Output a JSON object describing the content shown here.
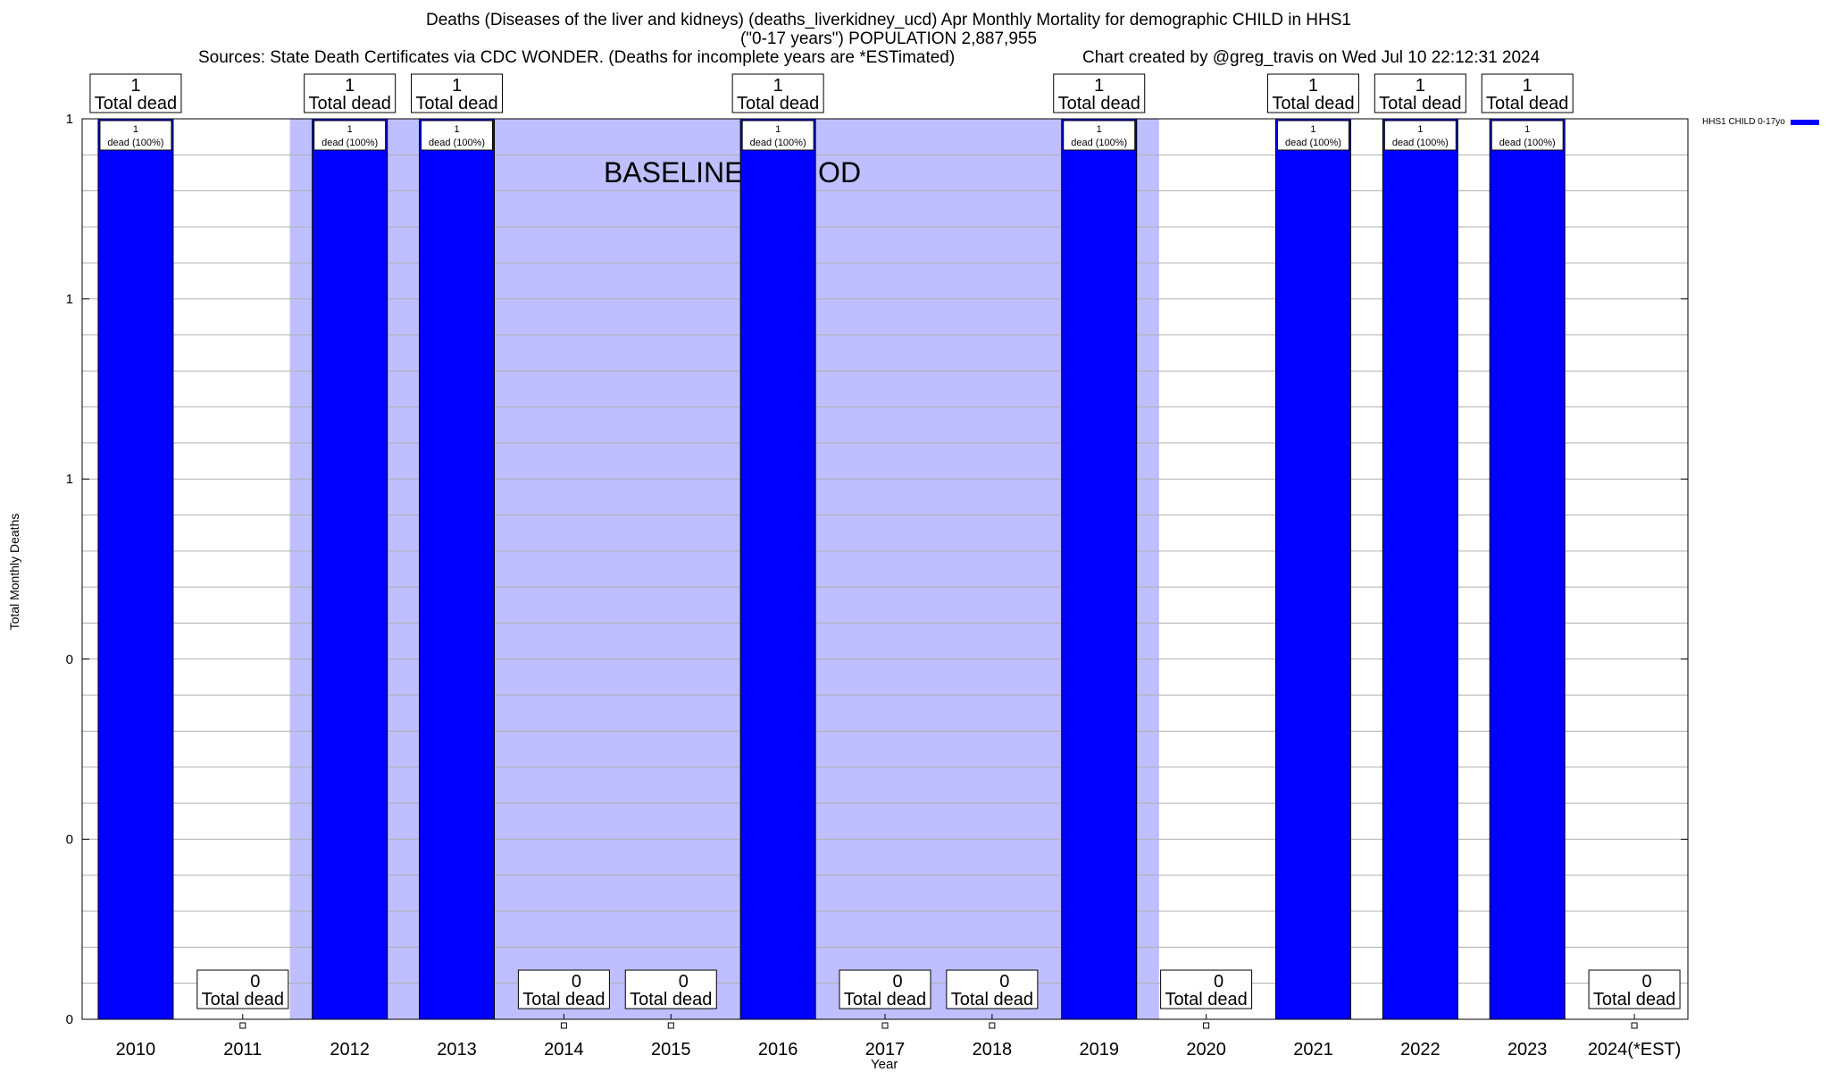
{
  "title": {
    "line1": "Deaths (Diseases of the liver and kidneys) (deaths_liverkidney_ucd) Apr Monthly Mortality for demographic CHILD in HHS1",
    "line2": "(\"0-17 years\") POPULATION 2,887,955",
    "sources": "Sources: State Death Certificates via CDC WONDER. (Deaths for incomplete years are *ESTimated)",
    "credit": "Chart created by @greg_travis on Wed Jul 10 22:12:31 2024"
  },
  "colors": {
    "bar": "#0000ff",
    "baseline": "#bfbfff",
    "grid": "#b0b0b0"
  },
  "chart_data": {
    "type": "bar",
    "xlabel": "Year",
    "ylabel": "Total Monthly Deaths",
    "ylim": [
      0,
      1
    ],
    "y_tick_labels": [
      "0",
      "0",
      "0",
      "1",
      "1",
      "1"
    ],
    "grid": true,
    "legend_position": "top-right",
    "categories": [
      "2010",
      "2011",
      "2012",
      "2013",
      "2014",
      "2015",
      "2016",
      "2017",
      "2018",
      "2019",
      "2020",
      "2021",
      "2022",
      "2023",
      "2024(*EST)"
    ],
    "series": [
      {
        "name": "HHS1 CHILD 0-17yo",
        "values": [
          1,
          0,
          1,
          1,
          0,
          0,
          1,
          0,
          0,
          1,
          0,
          1,
          1,
          1,
          0
        ]
      }
    ],
    "total_label_text": "Total dead",
    "bar_label_text": "dead (100%)",
    "annotation": {
      "text": "BASELINE PERIOD",
      "from": "2012",
      "to": "2019"
    }
  }
}
